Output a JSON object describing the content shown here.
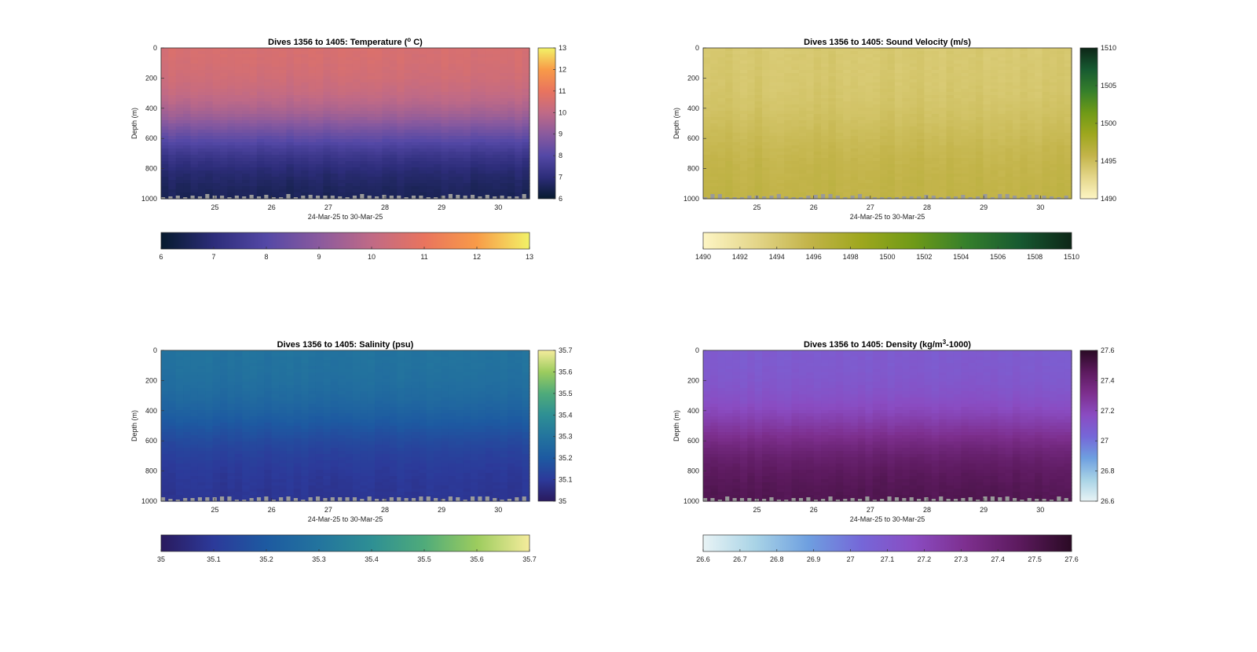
{
  "chart_data": [
    {
      "type": "heatmap",
      "title": "Dives 1356 to 1405: Temperature (",
      "title_sup": "o",
      "title_end": " C)",
      "xlabel": "24-Mar-25 to 30-Mar-25",
      "ylabel": "Depth (m)",
      "xlim": [
        24.05,
        30.55
      ],
      "xticks": [
        "25",
        "26",
        "27",
        "28",
        "29",
        "30"
      ],
      "ylim": [
        0,
        1000
      ],
      "yticks": [
        "0",
        "200",
        "400",
        "600",
        "800",
        "1000"
      ],
      "colormap": [
        "#061a2e",
        "#2d2d7a",
        "#5448a6",
        "#8a5a9e",
        "#c06a86",
        "#e9745e",
        "#f89b48",
        "#f2f267"
      ],
      "clim": [
        6,
        13
      ],
      "cbar_right_ticks": [
        "6",
        "7",
        "8",
        "9",
        "10",
        "11",
        "12",
        "13"
      ],
      "cbar_bottom_ticks": [
        "6",
        "7",
        "8",
        "9",
        "10",
        "11",
        "12",
        "13"
      ],
      "surface_value": 10.6,
      "deep_value": 6.4,
      "gradient_depth": 560
    },
    {
      "type": "heatmap",
      "title": "Dives 1356 to 1405: Sound Velocity (m/s)",
      "xlabel": "24-Mar-25 to 30-Mar-25",
      "ylabel": "Depth (m)",
      "xlim": [
        24.05,
        30.55
      ],
      "xticks": [
        "25",
        "26",
        "27",
        "28",
        "29",
        "30"
      ],
      "ylim": [
        0,
        1000
      ],
      "yticks": [
        "0",
        "200",
        "400",
        "600",
        "800",
        "1000"
      ],
      "colormap": [
        "#fdf5c4",
        "#e4d68a",
        "#c3b44a",
        "#9ea71e",
        "#6f9a17",
        "#357f2b",
        "#175a31",
        "#0d2617"
      ],
      "clim": [
        1490,
        1510
      ],
      "cbar_right_ticks": [
        "1490",
        "1495",
        "1500",
        "1505",
        "1510"
      ],
      "cbar_bottom_ticks": [
        "1490",
        "1492",
        "1494",
        "1496",
        "1498",
        "1500",
        "1502",
        "1504",
        "1506",
        "1508",
        "1510"
      ],
      "surface_value": 1494,
      "deep_value": 1496,
      "gradient_depth": 550
    },
    {
      "type": "heatmap",
      "title": "Dives 1356 to 1405: Salinity (psu)",
      "xlabel": "24-Mar-25 to 30-Mar-25",
      "ylabel": "Depth (m)",
      "xlim": [
        24.05,
        30.55
      ],
      "xticks": [
        "25",
        "26",
        "27",
        "28",
        "29",
        "30"
      ],
      "ylim": [
        0,
        1000
      ],
      "yticks": [
        "0",
        "200",
        "400",
        "600",
        "800",
        "1000"
      ],
      "colormap": [
        "#2a1a5e",
        "#2c3a9a",
        "#1d5aa1",
        "#23749e",
        "#2e8f94",
        "#4fab7a",
        "#9ccc5e",
        "#f5ec9c"
      ],
      "clim": [
        35,
        35.7
      ],
      "cbar_right_ticks": [
        "35",
        "35.1",
        "35.2",
        "35.3",
        "35.4",
        "35.5",
        "35.6",
        "35.7"
      ],
      "cbar_bottom_ticks": [
        "35",
        "35.1",
        "35.2",
        "35.3",
        "35.4",
        "35.5",
        "35.6",
        "35.7"
      ],
      "surface_value": 35.3,
      "deep_value": 35.08,
      "gradient_depth": 500
    },
    {
      "type": "heatmap",
      "title": "Dives 1356 to 1405: Density (kg/m",
      "title_sup": "3",
      "title_end": "-1000)",
      "xlabel": "24-Mar-25 to 30-Mar-25",
      "ylabel": "Depth (m)",
      "xlim": [
        24.05,
        30.55
      ],
      "xticks": [
        "25",
        "26",
        "27",
        "28",
        "29",
        "30"
      ],
      "ylim": [
        0,
        1000
      ],
      "yticks": [
        "0",
        "200",
        "400",
        "600",
        "800",
        "1000"
      ],
      "colormap": [
        "#e8f3f5",
        "#a8d3e6",
        "#6e9fe0",
        "#7567d8",
        "#8a4cc2",
        "#7d2f8e",
        "#5c1a5e",
        "#2a0a24"
      ],
      "clim": [
        26.6,
        27.6
      ],
      "cbar_right_ticks": [
        "26.6",
        "26.8",
        "27",
        "27.2",
        "27.4",
        "27.6"
      ],
      "cbar_bottom_ticks": [
        "26.6",
        "26.7",
        "26.8",
        "26.9",
        "27",
        "27.1",
        "27.2",
        "27.3",
        "27.4",
        "27.5",
        "27.6"
      ],
      "surface_value": 27.08,
      "deep_value": 27.5,
      "gradient_depth": 540
    }
  ]
}
